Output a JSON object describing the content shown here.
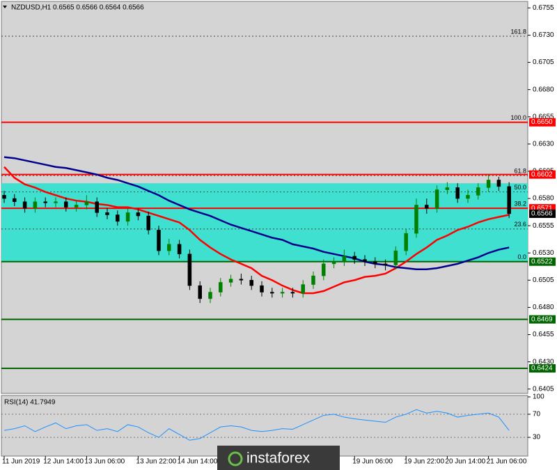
{
  "chart_data": {
    "type": "candlestick",
    "title": "NZDUSD,H1  0.6565 0.6566 0.6564 0.6566",
    "categories": [
      "11 Jun 2019",
      null,
      null,
      null,
      "12 Jun 14:00",
      null,
      null,
      null,
      "13 Jun 06:00",
      null,
      null,
      null,
      null,
      "13 Jun 22:00",
      null,
      null,
      null,
      "14 Jun 14:00",
      null,
      null,
      null,
      null,
      null,
      null,
      null,
      null,
      null,
      null,
      null,
      null,
      null,
      null,
      null,
      null,
      "19 Jun 06:00",
      null,
      null,
      null,
      null,
      "19 Jun 22:00",
      null,
      null,
      null,
      "20 Jun 14:00",
      null,
      null,
      null,
      "21 Jun 06:00",
      null,
      null
    ],
    "open": [
      0.6583,
      0.658,
      0.6577,
      0.6571,
      0.6577,
      0.6576,
      0.6577,
      0.6572,
      0.6574,
      0.6577,
      0.6567,
      0.6565,
      0.6559,
      0.6567,
      0.6564,
      0.6551,
      0.6532,
      0.6538,
      0.6529,
      0.65,
      0.6488,
      0.6494,
      0.6503,
      0.6506,
      0.6505,
      0.65,
      0.6494,
      0.6493,
      0.6494,
      0.6493,
      0.6501,
      0.6509,
      0.652,
      0.6522,
      0.6527,
      0.6524,
      0.6522,
      0.652,
      0.6519,
      0.6532,
      0.6548,
      0.6574,
      0.6571,
      0.6588,
      0.659,
      0.658,
      0.6583,
      0.659,
      0.6597,
      0.6591
    ],
    "high": [
      0.6587,
      0.6584,
      0.6581,
      0.6581,
      0.6581,
      0.6581,
      0.6581,
      0.6578,
      0.6583,
      0.6581,
      0.6571,
      0.6569,
      0.6571,
      0.6571,
      0.6568,
      0.6555,
      0.6543,
      0.6542,
      0.6533,
      0.6504,
      0.6498,
      0.6507,
      0.651,
      0.6511,
      0.6509,
      0.6504,
      0.6498,
      0.6498,
      0.6498,
      0.6505,
      0.6513,
      0.6524,
      0.6526,
      0.6533,
      0.6531,
      0.6528,
      0.6526,
      0.6524,
      0.6536,
      0.6552,
      0.658,
      0.658,
      0.6592,
      0.6595,
      0.6594,
      0.6588,
      0.6594,
      0.6602,
      0.66,
      0.6595
    ],
    "low": [
      0.6576,
      0.6573,
      0.6567,
      0.6567,
      0.6572,
      0.6572,
      0.6568,
      0.6568,
      0.657,
      0.6563,
      0.6561,
      0.6555,
      0.6555,
      0.656,
      0.6547,
      0.6528,
      0.6528,
      0.6525,
      0.6496,
      0.6484,
      0.6484,
      0.649,
      0.6499,
      0.6501,
      0.6496,
      0.649,
      0.6489,
      0.6489,
      0.6489,
      0.6489,
      0.6497,
      0.6505,
      0.6516,
      0.6518,
      0.652,
      0.6518,
      0.6516,
      0.6514,
      0.6515,
      0.6528,
      0.6544,
      0.6566,
      0.6567,
      0.6584,
      0.6576,
      0.6576,
      0.6579,
      0.6586,
      0.6587,
      0.6562
    ],
    "close": [
      0.658,
      0.6577,
      0.6571,
      0.6577,
      0.6576,
      0.6577,
      0.6572,
      0.6574,
      0.6577,
      0.6567,
      0.6565,
      0.6559,
      0.6567,
      0.6564,
      0.6551,
      0.6532,
      0.6538,
      0.6529,
      0.65,
      0.6488,
      0.6494,
      0.6503,
      0.6506,
      0.6505,
      0.65,
      0.6494,
      0.6493,
      0.6494,
      0.6493,
      0.6501,
      0.6509,
      0.652,
      0.6522,
      0.6527,
      0.6524,
      0.6522,
      0.652,
      0.6519,
      0.6532,
      0.6548,
      0.6574,
      0.6571,
      0.6588,
      0.659,
      0.658,
      0.6583,
      0.659,
      0.6597,
      0.6591,
      0.6566
    ],
    "bull_color": "#008000",
    "bear_color": "#000000",
    "ylim": [
      0.6401,
      0.6761
    ],
    "yticks": [
      0.6755,
      {
        "value": 0.673,
        "label": "0.6730"
      },
      0.6705,
      {
        "value": 0.668,
        "label": "0.6680"
      },
      0.6655,
      {
        "value": 0.663,
        "label": "0.6630"
      },
      0.6605,
      {
        "value": 0.658,
        "label": "0.6580"
      },
      0.6555,
      {
        "value": 0.653,
        "label": "0.6530"
      },
      0.6505,
      {
        "value": 0.648,
        "label": "0.6480"
      },
      0.6455,
      {
        "value": 0.643,
        "label": "0.6430"
      },
      0.6405
    ],
    "moving_averages": [
      {
        "color": "#ff0000",
        "values": [
          0.6609,
          0.6599,
          0.6593,
          0.659,
          0.6586,
          0.6583,
          0.658,
          0.6578,
          0.6577,
          0.6575,
          0.6574,
          0.6572,
          0.6572,
          0.657,
          0.6567,
          0.6564,
          0.6561,
          0.6558,
          0.6551,
          0.6542,
          0.6535,
          0.6529,
          0.6524,
          0.652,
          0.6516,
          0.6509,
          0.6505,
          0.65,
          0.6496,
          0.6493,
          0.6493,
          0.6495,
          0.6499,
          0.6503,
          0.6505,
          0.6508,
          0.6509,
          0.6511,
          0.6516,
          0.6522,
          0.6529,
          0.6535,
          0.6542,
          0.6546,
          0.6551,
          0.6554,
          0.6558,
          0.6561,
          0.6563,
          0.6565
        ]
      },
      {
        "color": "#00008b",
        "values": [
          0.6618,
          0.6617,
          0.6615,
          0.6613,
          0.6611,
          0.6609,
          0.6608,
          0.6606,
          0.6604,
          0.6602,
          0.6599,
          0.6597,
          0.6594,
          0.6591,
          0.6587,
          0.6583,
          0.6578,
          0.6574,
          0.657,
          0.6567,
          0.6564,
          0.656,
          0.6556,
          0.6553,
          0.655,
          0.6547,
          0.6544,
          0.6542,
          0.6538,
          0.6536,
          0.6534,
          0.6531,
          0.6529,
          0.6527,
          0.6525,
          0.6522,
          0.652,
          0.6519,
          0.6517,
          0.6516,
          0.6515,
          0.6515,
          0.6516,
          0.6518,
          0.652,
          0.6523,
          0.6526,
          0.653,
          0.6533,
          0.6535
        ]
      }
    ],
    "zone": {
      "values": [
        0.6522,
        0.6594
      ],
      "color": "#40e0d0"
    },
    "fib_levels": [
      {
        "label": "161.8",
        "value": 0.6729
      },
      {
        "label": "100.0",
        "value": 0.665
      },
      {
        "label": "61.8",
        "value": 0.6601
      },
      {
        "label": "50.0",
        "value": 0.6586
      },
      {
        "label": "38.2",
        "value": 0.6571
      },
      {
        "label": "23.6",
        "value": 0.6552
      },
      {
        "label": "0.0",
        "value": 0.6522
      }
    ],
    "levels": [
      {
        "value": 0.665,
        "label": "0.6650",
        "color": "#ff0000",
        "line": true
      },
      {
        "value": 0.6602,
        "label": "0.6602",
        "color": "#ff0000",
        "line": true
      },
      {
        "value": 0.6571,
        "label": "0.6571",
        "color": "#ff0000",
        "line": true
      },
      {
        "value": 0.6566,
        "label": "0.6566",
        "color": "#000000",
        "line": false
      },
      {
        "value": 0.6522,
        "label": "0.6522",
        "color": "#006400",
        "line": true
      },
      {
        "value": 0.6469,
        "label": "0.6469",
        "color": "#006400",
        "line": true
      },
      {
        "value": 0.6424,
        "label": "0.6424",
        "color": "#006400",
        "line": true
      }
    ],
    "rsi": {
      "title": "RSI(14) 41.7949",
      "color": "#1e90ff",
      "ylim": [
        0,
        100
      ],
      "yticks": [
        100,
        70,
        30
      ],
      "levels": [
        70,
        30
      ],
      "values": [
        42,
        45,
        50,
        40,
        48,
        55,
        45,
        50,
        52,
        42,
        45,
        40,
        52,
        48,
        38,
        30,
        45,
        35,
        25,
        28,
        38,
        48,
        50,
        48,
        42,
        40,
        42,
        45,
        44,
        52,
        60,
        68,
        70,
        65,
        62,
        60,
        58,
        56,
        65,
        70,
        78,
        72,
        75,
        72,
        65,
        68,
        70,
        72,
        65,
        42
      ]
    },
    "watermark": "instaforex"
  }
}
